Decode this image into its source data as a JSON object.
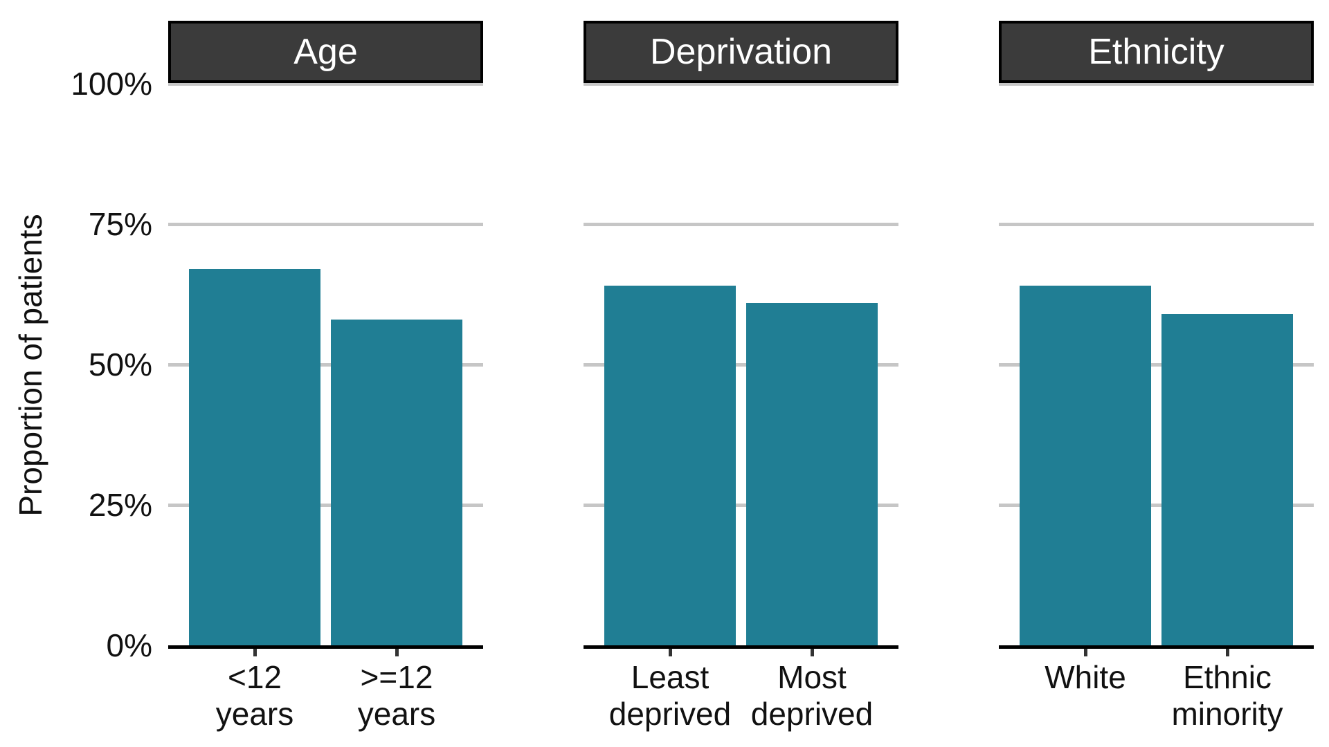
{
  "figure": {
    "background": "#ffffff"
  },
  "chart_data": {
    "type": "bar",
    "title": "",
    "xlabel": "",
    "ylabel": "Proportion of patients",
    "ylim": [
      0,
      100
    ],
    "grid": "horizontal-only",
    "legend_position": "none",
    "y_ticks": [
      {
        "value": 100,
        "label": "100%"
      },
      {
        "value": 75,
        "label": "75%"
      },
      {
        "value": 50,
        "label": "50%"
      },
      {
        "value": 25,
        "label": "25%"
      },
      {
        "value": 0,
        "label": "0%"
      }
    ],
    "facets": [
      {
        "label": "Age",
        "categories": [
          "<12 years",
          ">=12 years"
        ],
        "category_lines": [
          [
            "<12",
            "years"
          ],
          [
            ">=12",
            "years"
          ]
        ],
        "values": [
          67,
          58
        ]
      },
      {
        "label": "Deprivation",
        "categories": [
          "Least deprived",
          "Most deprived"
        ],
        "category_lines": [
          [
            "Least",
            "deprived"
          ],
          [
            "Most",
            "deprived"
          ]
        ],
        "values": [
          64,
          61
        ]
      },
      {
        "label": "Ethnicity",
        "categories": [
          "White",
          "Ethnic minority"
        ],
        "category_lines": [
          [
            "White"
          ],
          [
            "Ethnic",
            "minority"
          ]
        ],
        "values": [
          64,
          59
        ]
      }
    ]
  },
  "colors": {
    "bar": "#207E94",
    "strip_background": "#3B3B3B",
    "strip_border": "#000000",
    "strip_text": "#FFFFFF",
    "gridline": "#C6C6C6",
    "axis_line": "#000000",
    "text": "#111111"
  }
}
